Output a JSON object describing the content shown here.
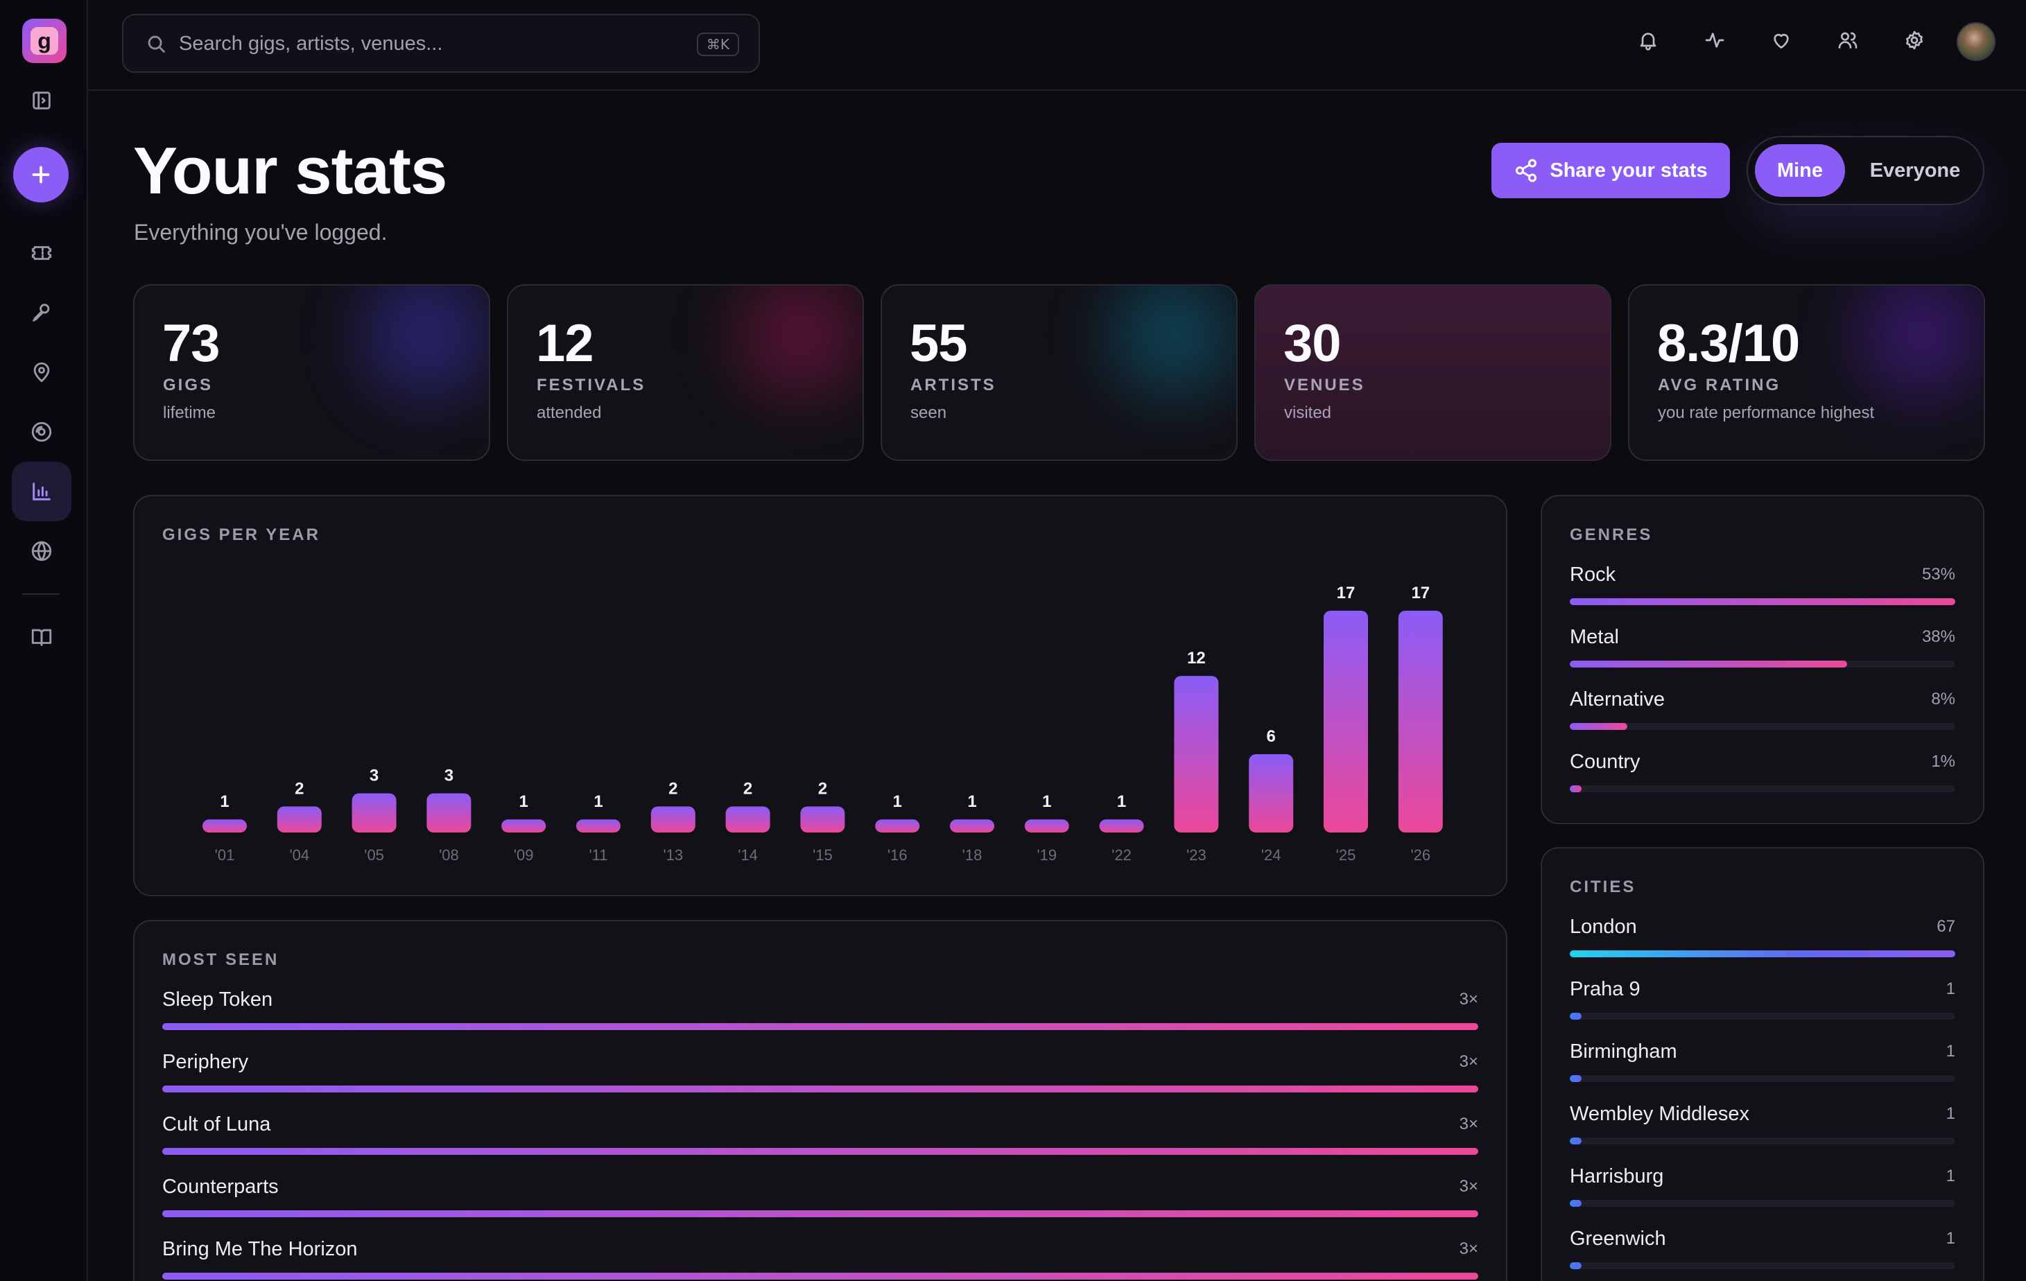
{
  "app": {
    "logo_letter": "g"
  },
  "search": {
    "placeholder": "Search gigs, artists, venues...",
    "shortcut": "⌘K"
  },
  "header": {
    "title": "Your stats",
    "subtitle": "Everything you've logged.",
    "share_label": "Share your stats",
    "toggle": {
      "mine": "Mine",
      "everyone": "Everyone",
      "selected": "Mine"
    }
  },
  "stats": [
    {
      "value": "73",
      "label": "GIGS",
      "caption": "lifetime"
    },
    {
      "value": "12",
      "label": "FESTIVALS",
      "caption": "attended"
    },
    {
      "value": "55",
      "label": "ARTISTS",
      "caption": "seen"
    },
    {
      "value": "30",
      "label": "VENUES",
      "caption": "visited"
    },
    {
      "value": "8.3/10",
      "label": "AVG RATING",
      "caption": "you rate performance highest"
    }
  ],
  "gigs_per_year": {
    "title": "GIGS PER YEAR"
  },
  "chart_data": {
    "type": "bar",
    "categories": [
      "'01",
      "'04",
      "'05",
      "'08",
      "'09",
      "'11",
      "'13",
      "'14",
      "'15",
      "'16",
      "'18",
      "'19",
      "'22",
      "'23",
      "'24",
      "'25",
      "'26"
    ],
    "values": [
      1,
      2,
      3,
      3,
      1,
      1,
      2,
      2,
      2,
      1,
      1,
      1,
      1,
      12,
      6,
      17,
      17
    ],
    "title": "GIGS PER YEAR",
    "xlabel": "",
    "ylabel": "",
    "ylim": [
      0,
      17
    ],
    "grid": false,
    "colors": {
      "top": "#8b5cf6",
      "bottom": "#ec4899"
    }
  },
  "most_seen": {
    "title": "MOST SEEN",
    "items": [
      {
        "name": "Sleep Token",
        "count": "3×",
        "fraction": 1.0
      },
      {
        "name": "Periphery",
        "count": "3×",
        "fraction": 1.0
      },
      {
        "name": "Cult of Luna",
        "count": "3×",
        "fraction": 1.0
      },
      {
        "name": "Counterparts",
        "count": "3×",
        "fraction": 1.0
      },
      {
        "name": "Bring Me The Horizon",
        "count": "3×",
        "fraction": 1.0
      }
    ]
  },
  "genres": {
    "title": "GENRES",
    "items": [
      {
        "name": "Rock",
        "pct": "53%",
        "fraction": 1.0
      },
      {
        "name": "Metal",
        "pct": "38%",
        "fraction": 0.72
      },
      {
        "name": "Alternative",
        "pct": "8%",
        "fraction": 0.15
      },
      {
        "name": "Country",
        "pct": "1%",
        "fraction": 0.03
      }
    ]
  },
  "cities": {
    "title": "CITIES",
    "items": [
      {
        "name": "London",
        "count": "67",
        "fraction": 1.0
      },
      {
        "name": "Praha 9",
        "count": "1",
        "fraction": 0.03
      },
      {
        "name": "Birmingham",
        "count": "1",
        "fraction": 0.03
      },
      {
        "name": "Wembley Middlesex",
        "count": "1",
        "fraction": 0.03
      },
      {
        "name": "Harrisburg",
        "count": "1",
        "fraction": 0.03
      },
      {
        "name": "Greenwich",
        "count": "1",
        "fraction": 0.03
      }
    ]
  },
  "theme": {
    "accent": "#8b5cf6",
    "pink": "#ec4899",
    "background": "#0c0b10",
    "card": "#121118"
  }
}
